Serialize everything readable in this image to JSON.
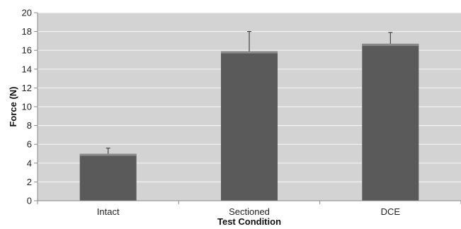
{
  "chart_data": {
    "type": "bar",
    "title": "",
    "xlabel": "Test Condition",
    "ylabel": "Force (N)",
    "categories": [
      "Intact",
      "Sectioned",
      "DCE"
    ],
    "values": [
      5.0,
      15.9,
      16.7
    ],
    "error_upper": [
      0.6,
      2.1,
      1.2
    ],
    "ylim": [
      0,
      20
    ],
    "yticks": [
      0,
      2,
      4,
      6,
      8,
      10,
      12,
      14,
      16,
      18,
      20
    ],
    "grid": true,
    "legend": "none",
    "colors": {
      "plot_background": "#d3d3d3",
      "bar_fill": "#5a5a5a",
      "bar_top": "#8a8a8a",
      "gridline": "#f2f2f2",
      "error_bar": "#444444"
    }
  }
}
